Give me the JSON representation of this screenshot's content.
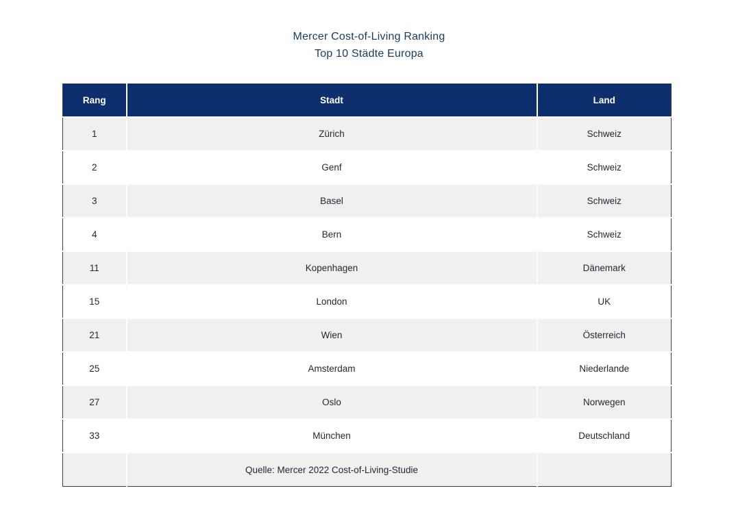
{
  "title": {
    "line1": "Mercer Cost-of-Living Ranking",
    "line2": "Top 10 Städte Europa"
  },
  "colors": {
    "header_bg": "#0d2f6e",
    "header_text": "#ffffff",
    "row_alt_bg": "#f0f0ee",
    "row_bg": "#ffffff",
    "title_color": "#173a5f",
    "cell_text": "#1f2733",
    "table_border": "#3c3c3b"
  },
  "chart_data": {
    "type": "table",
    "title": "Mercer Cost-of-Living Ranking",
    "subtitle": "Top 10 Städte Europa",
    "columns": [
      "Rang",
      "Stadt",
      "Land"
    ],
    "rows": [
      [
        "1",
        "Zürich",
        "Schweiz"
      ],
      [
        "2",
        "Genf",
        "Schweiz"
      ],
      [
        "3",
        "Basel",
        "Schweiz"
      ],
      [
        "4",
        "Bern",
        "Schweiz"
      ],
      [
        "11",
        "Kopenhagen",
        "Dänemark"
      ],
      [
        "15",
        "London",
        "UK"
      ],
      [
        "21",
        "Wien",
        "Österreich"
      ],
      [
        "25",
        "Amsterdam",
        "Niederlande"
      ],
      [
        "27",
        "Oslo",
        "Norwegen"
      ],
      [
        "33",
        "München",
        "Deutschland"
      ]
    ],
    "source": "Quelle: Mercer 2022 Cost-of-Living-Studie"
  }
}
